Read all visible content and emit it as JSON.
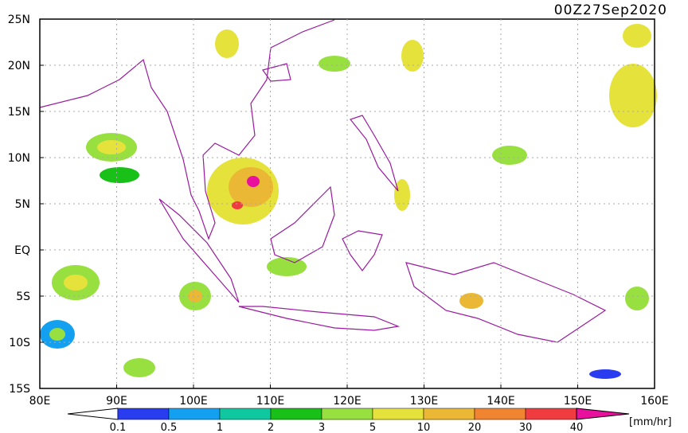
{
  "title": "00Z27Sep2020",
  "lat_labels": [
    "25N",
    "20N",
    "15N",
    "10N",
    "5N",
    "EQ",
    "5S",
    "10S",
    "15S"
  ],
  "lon_labels": [
    "80E",
    "90E",
    "100E",
    "110E",
    "120E",
    "130E",
    "140E",
    "150E",
    "160E"
  ],
  "colorbar": {
    "labels": [
      0.1,
      0.5,
      1,
      2,
      3,
      5,
      10,
      20,
      30,
      40
    ],
    "colors": [
      "#ffffff",
      "#2a3cf0",
      "#14a0f0",
      "#10c8a0",
      "#18c018",
      "#98e040",
      "#e6e23c",
      "#eab834",
      "#f08430",
      "#f03c40",
      "#e8109c"
    ],
    "unit": "[mm/hr]"
  }
}
